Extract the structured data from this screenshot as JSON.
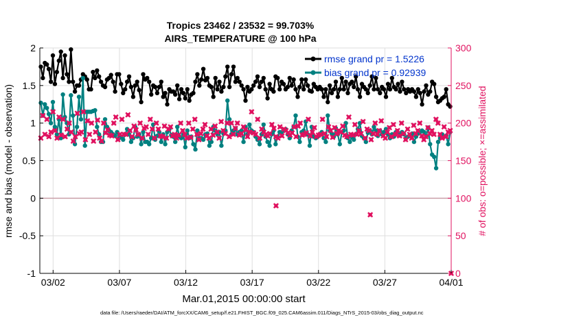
{
  "chart_data": {
    "type": "line",
    "title": "Tropics 23462 / 23532 = 99.703%",
    "subtitle": "AIRS_TEMPERATURE @ 100 hPa",
    "xlabel": "Mar.01,2015 00:00:00 start",
    "ylabel": "rmse and bias (model - observation)",
    "y2label": "# of obs: o=possible; ×=assimilated",
    "footer": "data file: /Users/raeder/DAI/ATM_forcXX/CAM6_setup/f.e21.FHIST_BGC.f09_025.CAM6assim.011/Diags_NTrS_2015-03/obs_diag_output.nc",
    "xlim": [
      0,
      31
    ],
    "ylim": [
      -1,
      2
    ],
    "y2lim": [
      0,
      300
    ],
    "x_ticks": [
      {
        "x": 1,
        "label": "03/02"
      },
      {
        "x": 6,
        "label": "03/07"
      },
      {
        "x": 11,
        "label": "03/12"
      },
      {
        "x": 16,
        "label": "03/17"
      },
      {
        "x": 21,
        "label": "03/22"
      },
      {
        "x": 26,
        "label": "03/27"
      },
      {
        "x": 31,
        "label": "04/01"
      }
    ],
    "y_ticks": [
      "-1",
      "-0.5",
      "0",
      "0.5",
      "1",
      "1.5",
      "2"
    ],
    "y2_ticks": [
      "0",
      "50",
      "100",
      "150",
      "200",
      "250",
      "300"
    ],
    "zero_line": 0,
    "legend": [
      {
        "label": "rmse grand pr = 1.5226",
        "color": "#000000"
      },
      {
        "label": "bias grand pr = 0.92939",
        "color": "#008080"
      }
    ],
    "series": [
      {
        "name": "rmse",
        "color": "#000000",
        "axis": "left",
        "marker": "circle",
        "values": [
          1.75,
          1.6,
          1.8,
          1.78,
          1.72,
          1.55,
          1.9,
          1.52,
          1.68,
          1.83,
          1.95,
          1.6,
          1.9,
          1.65,
          1.55,
          1.98,
          1.55,
          1.42,
          1.5,
          1.5,
          1.58,
          1.65,
          1.62,
          1.58,
          1.45,
          1.45,
          1.68,
          1.6,
          1.7,
          1.62,
          1.55,
          1.5,
          1.48,
          1.58,
          1.6,
          1.64,
          1.55,
          1.42,
          1.65,
          1.65,
          1.52,
          1.4,
          1.45,
          1.55,
          1.62,
          1.48,
          1.35,
          1.5,
          1.55,
          1.44,
          1.28,
          1.65,
          1.58,
          1.6,
          1.55,
          1.38,
          1.5,
          1.48,
          1.4,
          1.48,
          1.55,
          1.35,
          1.4,
          1.25,
          1.45,
          1.42,
          1.42,
          1.38,
          1.5,
          1.32,
          1.45,
          1.4,
          1.33,
          1.45,
          1.3,
          1.38,
          1.4,
          1.55,
          1.65,
          1.5,
          1.58,
          1.72,
          1.57,
          1.6,
          1.5,
          1.48,
          1.35,
          1.6,
          1.45,
          1.55,
          1.42,
          1.48,
          1.62,
          1.75,
          1.48,
          1.65,
          1.75,
          1.55,
          1.6,
          1.55,
          1.5,
          1.45,
          1.3,
          1.48,
          1.42,
          1.45,
          1.5,
          1.55,
          1.62,
          1.48,
          1.55,
          1.6,
          1.45,
          1.33,
          1.52,
          1.45,
          1.42,
          1.62,
          1.6,
          1.45,
          1.55,
          1.52,
          1.45,
          1.48,
          1.6,
          1.5,
          1.58,
          1.45,
          1.35,
          1.48,
          1.58,
          1.45,
          1.58,
          1.5,
          1.43,
          1.42,
          1.52,
          1.48,
          1.45,
          1.48,
          1.45,
          1.35,
          1.45,
          1.28,
          1.5,
          1.4,
          1.45,
          1.55,
          1.35,
          1.45,
          1.6,
          1.45,
          1.55,
          1.4,
          1.52,
          1.55,
          1.48,
          1.62,
          1.45,
          1.35,
          1.52,
          1.48,
          1.45,
          1.4,
          1.5,
          1.62,
          1.45,
          1.6,
          1.45,
          1.4,
          1.48,
          1.45,
          1.35,
          1.52,
          1.45,
          1.6,
          1.48,
          1.45,
          1.52,
          1.42,
          1.55,
          1.45,
          1.4,
          1.45,
          1.42,
          1.45,
          1.42,
          1.35,
          1.45,
          1.4,
          1.25,
          1.42,
          1.5,
          1.38,
          1.42,
          1.55,
          1.52,
          1.35,
          1.28,
          1.3,
          1.33,
          1.35,
          1.45,
          1.25,
          1.22
        ]
      },
      {
        "name": "bias",
        "color": "#008080",
        "axis": "left",
        "marker": "circle",
        "values": [
          1.27,
          1.1,
          1.25,
          1.2,
          1.12,
          1.0,
          1.28,
          0.95,
          0.85,
          1.05,
          0.8,
          1.38,
          1.08,
          1.0,
          0.85,
          1.37,
          1.1,
          0.72,
          0.95,
          1.35,
          1.05,
          1.6,
          0.7,
          1.15,
          1.15,
          1.15,
          1.16,
          1.17,
          0.95,
          0.85,
          0.75,
          0.75,
          1.05,
          0.95,
          0.9,
          0.88,
          0.85,
          0.83,
          0.88,
          0.8,
          0.82,
          0.78,
          0.85,
          0.92,
          0.85,
          0.75,
          0.8,
          0.95,
          0.82,
          0.85,
          0.72,
          0.88,
          0.75,
          0.75,
          0.72,
          0.8,
          0.98,
          0.78,
          0.83,
          0.88,
          0.75,
          0.85,
          0.72,
          0.88,
          0.92,
          0.84,
          0.82,
          0.75,
          0.95,
          0.82,
          0.8,
          0.85,
          0.68,
          0.9,
          0.8,
          0.82,
          0.72,
          0.65,
          0.9,
          0.8,
          0.8,
          0.78,
          0.85,
          0.86,
          0.7,
          0.75,
          0.95,
          0.9,
          0.85,
          0.88,
          0.7,
          0.86,
          0.9,
          1.3,
          1.05,
          0.85,
          0.9,
          0.93,
          0.85,
          0.88,
          0.9,
          0.75,
          0.95,
          0.85,
          0.98,
          0.9,
          0.88,
          0.82,
          0.78,
          0.72,
          0.85,
          0.98,
          0.82,
          0.75,
          0.7,
          0.85,
          0.9,
          0.72,
          0.82,
          0.88,
          0.88,
          0.9,
          0.92,
          0.85,
          0.8,
          0.9,
          0.95,
          1.1,
          0.82,
          0.75,
          0.88,
          0.9,
          1.02,
          0.85,
          0.7,
          0.95,
          0.82,
          0.8,
          0.82,
          0.85,
          0.88,
          0.8,
          0.75,
          1.1,
          0.9,
          0.86,
          0.82,
          0.93,
          0.85,
          0.72,
          0.88,
          0.9,
          1.0,
          0.8,
          0.75,
          0.82,
          0.78,
          0.85,
          0.92,
          1.0,
          0.83,
          0.8,
          0.75,
          0.87,
          0.9,
          0.85,
          0.95,
          0.9,
          0.83,
          0.9,
          0.85,
          0.88,
          0.92,
          0.85,
          0.8,
          0.85,
          0.82,
          0.88,
          0.87,
          0.84,
          0.88,
          0.85,
          0.8,
          0.82,
          0.84,
          0.86,
          0.75,
          0.82,
          0.86,
          0.88,
          0.9,
          0.88,
          0.82,
          0.94,
          0.72,
          0.58,
          0.55,
          0.4,
          0.75,
          0.8,
          0.85,
          0.82,
          0.83,
          0.72,
          0.88
        ]
      },
      {
        "name": "obs_assimilated",
        "color": "#E0115F",
        "axis": "right",
        "marker": "x",
        "values": [
          180,
          210,
          185,
          205,
          182,
          188,
          215,
          190,
          180,
          208,
          184,
          205,
          182,
          192,
          200,
          188,
          176,
          182,
          213,
          186,
          188,
          215,
          178,
          203,
          185,
          200,
          176,
          188,
          204,
          180,
          176,
          200,
          187,
          191,
          184,
          183,
          200,
          208,
          178,
          185,
          205,
          185,
          185,
          211,
          190,
          182,
          196,
          191,
          185,
          200,
          180,
          193,
          195,
          185,
          205,
          192,
          180,
          200,
          192,
          183,
          182,
          196,
          180,
          192,
          195,
          183,
          185,
          180,
          184,
          200,
          190,
          185,
          180,
          200,
          181,
          192,
          205,
          185,
          178,
          186,
          192,
          198,
          183,
          180,
          192,
          184,
          196,
          188,
          180,
          202,
          190,
          186,
          200,
          182,
          200,
          185,
          193,
          200,
          184,
          186,
          195,
          191,
          182,
          188,
          215,
          187,
          185,
          205,
          180,
          192,
          188,
          185,
          183,
          186,
          198,
          193,
          182,
          180,
          195,
          183,
          192,
          190,
          187,
          184,
          187,
          195,
          182,
          196,
          200,
          184,
          185,
          187,
          205,
          183,
          188,
          194,
          182,
          184,
          185,
          205,
          186,
          182,
          195,
          190,
          181,
          194,
          186,
          190,
          188,
          196,
          184,
          182,
          208,
          185,
          184,
          198,
          185,
          190,
          186,
          202,
          180,
          192,
          190,
          178,
          186,
          200,
          185,
          190,
          203,
          183,
          180,
          188,
          194,
          182,
          198,
          185,
          190,
          183,
          200,
          186,
          178,
          192,
          185,
          180,
          197,
          186,
          190,
          200,
          183,
          178,
          182,
          194,
          186,
          190,
          185,
          205,
          200,
          185,
          180,
          195,
          182,
          188,
          190
        ]
      },
      {
        "name": "obs_possible_outliers",
        "color": "#E0115F",
        "axis": "right",
        "marker": "x",
        "points": [
          {
            "x": 17.8,
            "y": 90
          },
          {
            "x": 24.9,
            "y": 78
          },
          {
            "x": 31.0,
            "y": 0
          }
        ]
      }
    ]
  }
}
